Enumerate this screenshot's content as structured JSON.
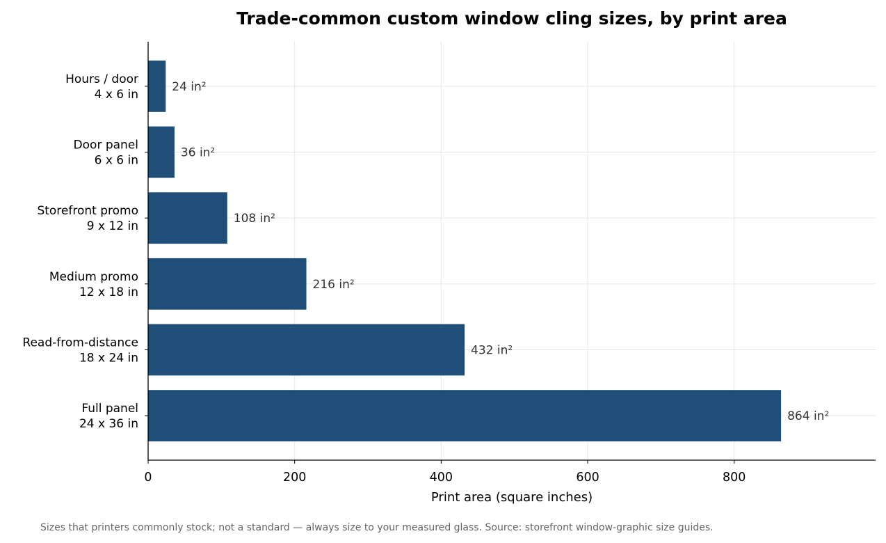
{
  "chart_data": {
    "type": "bar",
    "orientation": "horizontal",
    "title": "Trade-common custom window cling sizes, by print area",
    "xlabel": "Print area (square inches)",
    "ylabel": "",
    "categories": [
      [
        "Hours / door",
        "4 x 6 in"
      ],
      [
        "Door panel",
        "6 x 6 in"
      ],
      [
        "Storefront promo",
        "9 x 12 in"
      ],
      [
        "Medium promo",
        "12 x 18 in"
      ],
      [
        "Read-from-distance",
        "18 x 24 in"
      ],
      [
        "Full panel",
        "24 x 36 in"
      ]
    ],
    "values": [
      24,
      36,
      108,
      216,
      432,
      864
    ],
    "value_labels": [
      "24 in²",
      "36 in²",
      "108 in²",
      "216 in²",
      "432 in²",
      "864 in²"
    ],
    "xlim": [
      0,
      993
    ],
    "xticks": [
      0,
      200,
      400,
      600,
      800
    ],
    "xtick_labels": [
      "0",
      "200",
      "400",
      "600",
      "800"
    ],
    "grid": true,
    "bar_color": "#1f4e78",
    "footnote": "Sizes that printers commonly stock; not a standard — always size to your measured glass. Source: storefront window-graphic size guides."
  }
}
